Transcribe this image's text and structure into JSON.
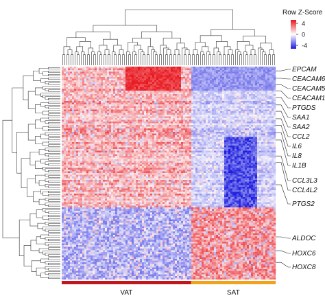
{
  "chart_data": {
    "type": "heatmap",
    "title": "",
    "legend": {
      "title": "Row Z-Score",
      "ticks": [
        4,
        0,
        -4
      ],
      "placement": "top-right",
      "colors": {
        "high": "#e8141c",
        "mid": "#ffffff",
        "low": "#1a1adf"
      }
    },
    "columns": {
      "groups": [
        {
          "name": "VAT",
          "color": "#c0161c",
          "share": 0.605
        },
        {
          "name": "SAT",
          "color": "#f0a21a",
          "share": 0.395
        }
      ]
    },
    "row_labels": [
      {
        "gene": "EPCAM",
        "row_fraction": 0.02
      },
      {
        "gene": "CEACAM6",
        "row_fraction": 0.055
      },
      {
        "gene": "CEACAM5",
        "row_fraction": 0.085
      },
      {
        "gene": "CEACAM1",
        "row_fraction": 0.115
      },
      {
        "gene": "PTGDS",
        "row_fraction": 0.145
      },
      {
        "gene": "SAA1",
        "row_fraction": 0.18
      },
      {
        "gene": "SAA2",
        "row_fraction": 0.21
      },
      {
        "gene": "CCL2",
        "row_fraction": 0.245
      },
      {
        "gene": "IL6",
        "row_fraction": 0.275
      },
      {
        "gene": "IL8",
        "row_fraction": 0.31
      },
      {
        "gene": "IL1B",
        "row_fraction": 0.345
      },
      {
        "gene": "CCL3L3",
        "row_fraction": 0.42
      },
      {
        "gene": "CCL4L2",
        "row_fraction": 0.45
      },
      {
        "gene": "PTGS2",
        "row_fraction": 0.555
      },
      {
        "gene": "ALDOC",
        "row_fraction": 0.8
      },
      {
        "gene": "HOXC6",
        "row_fraction": 0.865
      },
      {
        "gene": "HOXC8",
        "row_fraction": 0.92
      }
    ],
    "blocks": {
      "vat_high_fraction": 0.66,
      "description_pattern": "VAT columns mostly red (up) in top 66% of genes and blue below; SAT columns opposite"
    }
  }
}
